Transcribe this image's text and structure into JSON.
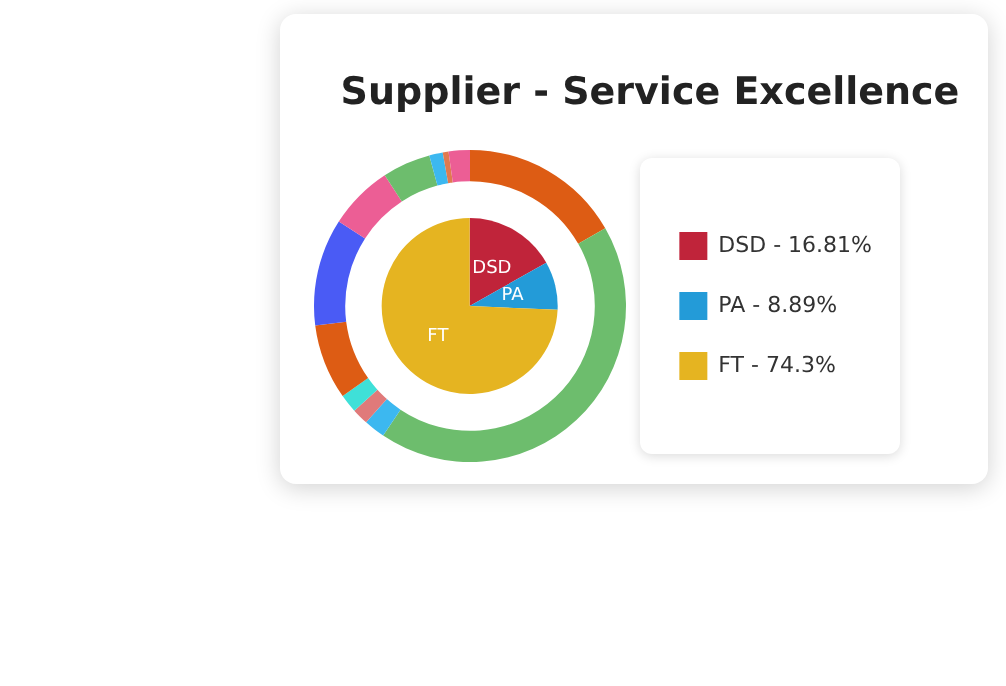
{
  "chart_data": [
    {
      "type": "pie",
      "title": "Supplier - Service Excellence",
      "legend": "right",
      "categories": [
        "DSD - 16.81%",
        "PA - 8.89%",
        "FT - 74.3%"
      ],
      "values": [
        16.81,
        8.89,
        74.3
      ],
      "colors": [
        "#c0243a",
        "#239bd8",
        "#e5b421"
      ],
      "annotations": [
        "DSD",
        "PA",
        "FT"
      ]
    },
    {
      "type": "donut",
      "categories": [
        null,
        null,
        null,
        null,
        null,
        null,
        null,
        null,
        null,
        null,
        null,
        null
      ],
      "values": [
        16.7,
        42.7,
        2.2,
        1.7,
        1.9,
        7.8,
        11.1,
        6.7,
        5.0,
        1.4,
        0.6,
        2.2
      ],
      "colors": [
        "#dd5c14",
        "#6dbd6d",
        "#3cb8f0",
        "#e07a7a",
        "#3fe0d8",
        "#dd5c14",
        "#4a5bf5",
        "#ec5e95",
        "#6dbd6d",
        "#3cb8f0",
        "#e07a50",
        "#ec5e95"
      ]
    }
  ]
}
